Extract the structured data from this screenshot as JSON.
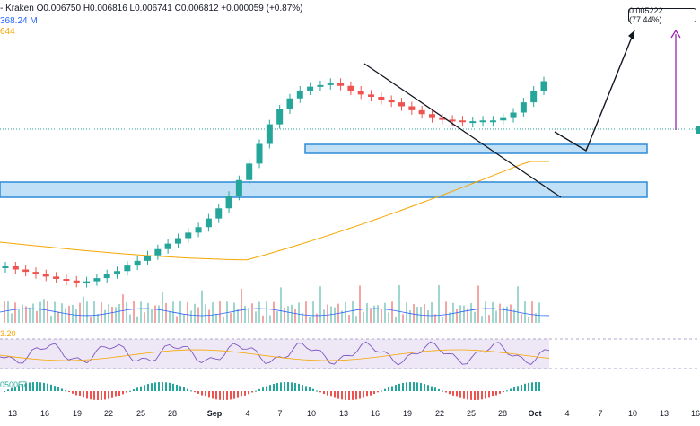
{
  "header": {
    "ohlc_line": "- Kraken  O0.006750  H0.006816  L0.006741  C0.006812  +0.000059 (+0.87%)",
    "volume_line": "368.24 M",
    "ma_line": "644"
  },
  "annotation": {
    "target_label": "0.005222 (77.44%)"
  },
  "indicators": {
    "rsi_label": "3.20",
    "macd_label": "050057"
  },
  "colors": {
    "up": "#26a69a",
    "down": "#ef5350",
    "ma": "#f7a600",
    "zone": "#2e8bd6",
    "zone_fill": "#bfe0f7",
    "projection": "#131722",
    "target_arrow": "#9c27b0",
    "volume_ma": "#2962ff",
    "rsi_band": "#ede7f6",
    "rsi_line": "#7e57c2"
  },
  "chart_data": {
    "type": "candlestick",
    "x_ticks": [
      "13",
      "16",
      "19",
      "22",
      "25",
      "28",
      "Sep",
      "4",
      "7",
      "10",
      "13",
      "16",
      "19",
      "22",
      "25",
      "28",
      "Oct",
      "4",
      "7",
      "10",
      "13",
      "16"
    ],
    "price_series": [
      0.00362,
      0.00358,
      0.00355,
      0.00352,
      0.00349,
      0.00346,
      0.00344,
      0.00341,
      0.00343,
      0.00347,
      0.00352,
      0.00356,
      0.00363,
      0.00369,
      0.00376,
      0.00384,
      0.00391,
      0.00398,
      0.00405,
      0.00412,
      0.00423,
      0.00436,
      0.00452,
      0.00472,
      0.00493,
      0.00518,
      0.00543,
      0.00562,
      0.00576,
      0.00586,
      0.00591,
      0.00593,
      0.00596,
      0.00592,
      0.00586,
      0.00581,
      0.00578,
      0.00574,
      0.00571,
      0.00566,
      0.00561,
      0.00556,
      0.00551,
      0.00549,
      0.00548,
      0.00547,
      0.00547,
      0.00548,
      0.00548,
      0.00551,
      0.00558,
      0.00571,
      0.00586,
      0.00598
    ],
    "projection_path": [
      [
        0.00598,
        0.00595
      ],
      [
        0.00575,
        0.00612
      ]
    ],
    "annotations": [
      {
        "label": "0.005222 (77.44%)"
      }
    ]
  }
}
